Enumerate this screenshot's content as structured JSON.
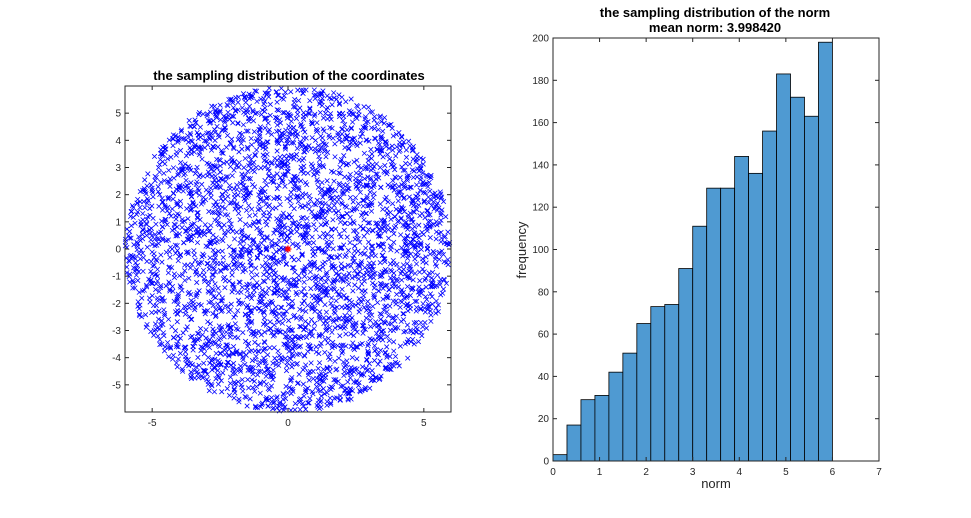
{
  "chart_data": [
    {
      "type": "scatter",
      "title": "the sampling distribution of the coordinates",
      "xlabel": "",
      "ylabel": "",
      "xlim": [
        -6,
        6
      ],
      "ylim": [
        -6,
        6
      ],
      "xticks": [
        "-5",
        "0",
        "5"
      ],
      "yticks": [
        "5",
        "4",
        "3",
        "2",
        "1",
        "0",
        "-1",
        "-2",
        "-3",
        "-4",
        "-5"
      ],
      "marker": "x",
      "marker_color": "#0000ff",
      "points_shown": "dense uniform sampling of points inside a disk of radius 6 centered at the origin",
      "highlight_point": {
        "x": 0,
        "y": 0,
        "marker": "*",
        "color": "#ff0000"
      },
      "grid": false
    },
    {
      "type": "bar",
      "title": "the sampling distribution of the norm",
      "subtitle": "mean norm: 3.998420",
      "xlabel": "norm",
      "ylabel": "frequency",
      "xlim": [
        0,
        7
      ],
      "ylim": [
        0,
        200
      ],
      "xticks": [
        "0",
        "1",
        "2",
        "3",
        "4",
        "5",
        "6",
        "7"
      ],
      "yticks": [
        "0",
        "20",
        "40",
        "60",
        "80",
        "100",
        "120",
        "140",
        "160",
        "180",
        "200"
      ],
      "bin_edges": [
        0,
        0.3,
        0.6,
        0.9,
        1.2,
        1.5,
        1.8,
        2.1,
        2.4,
        2.7,
        3.0,
        3.3,
        3.6,
        3.9,
        4.2,
        4.5,
        4.8,
        5.1,
        5.4,
        5.7,
        6.0
      ],
      "values": [
        3,
        17,
        29,
        31,
        42,
        51,
        65,
        73,
        74,
        91,
        111,
        129,
        129,
        144,
        136,
        156,
        183,
        172,
        163,
        198
      ],
      "bar_color": "#4f9ad2",
      "edge_color": "#000000",
      "grid": false
    }
  ]
}
